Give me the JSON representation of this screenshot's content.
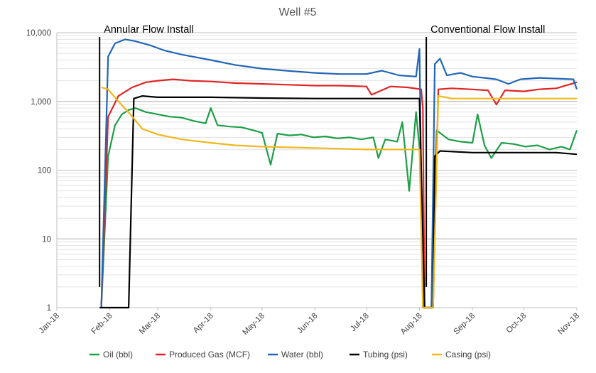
{
  "chart_data": {
    "type": "line",
    "title": "Well #5",
    "y_scale": "log",
    "ylim": [
      1,
      10000
    ],
    "y_ticks": [
      {
        "value": 10000,
        "label": "10,000"
      },
      {
        "value": 1000,
        "label": "1,000"
      },
      {
        "value": 100,
        "label": "100"
      },
      {
        "value": 10,
        "label": "10"
      },
      {
        "value": 1,
        "label": "1"
      }
    ],
    "x_ticks": [
      {
        "date": "2018-01-01",
        "label": "Jan-18"
      },
      {
        "date": "2018-02-01",
        "label": "Feb-18"
      },
      {
        "date": "2018-03-01",
        "label": "Mar-18"
      },
      {
        "date": "2018-04-01",
        "label": "Apr-18"
      },
      {
        "date": "2018-05-01",
        "label": "May-18"
      },
      {
        "date": "2018-06-01",
        "label": "Jun-18"
      },
      {
        "date": "2018-07-01",
        "label": "Jul-18"
      },
      {
        "date": "2018-08-01",
        "label": "Aug-18"
      },
      {
        "date": "2018-09-01",
        "label": "Sep-18"
      },
      {
        "date": "2018-10-01",
        "label": "Oct-18"
      },
      {
        "date": "2018-11-01",
        "label": "Nov-18"
      }
    ],
    "grid": true,
    "legend_position": "bottom",
    "annotations": [
      {
        "text": "Annular Flow Install",
        "date": "2018-01-26"
      },
      {
        "text": "Conventional Flow Install",
        "date": "2018-08-05"
      }
    ],
    "series": [
      {
        "name": "Oil (bbl)",
        "color": "#1e9e47",
        "points": [
          [
            "2018-01-27",
            1
          ],
          [
            "2018-01-31",
            160
          ],
          [
            "2018-02-04",
            450
          ],
          [
            "2018-02-08",
            650
          ],
          [
            "2018-02-12",
            750
          ],
          [
            "2018-02-16",
            800
          ],
          [
            "2018-02-22",
            700
          ],
          [
            "2018-03-01",
            650
          ],
          [
            "2018-03-08",
            600
          ],
          [
            "2018-03-15",
            580
          ],
          [
            "2018-03-22",
            520
          ],
          [
            "2018-03-29",
            480
          ],
          [
            "2018-04-01",
            800
          ],
          [
            "2018-04-05",
            450
          ],
          [
            "2018-04-12",
            430
          ],
          [
            "2018-04-19",
            420
          ],
          [
            "2018-04-26",
            380
          ],
          [
            "2018-05-01",
            350
          ],
          [
            "2018-05-06",
            120
          ],
          [
            "2018-05-10",
            340
          ],
          [
            "2018-05-17",
            320
          ],
          [
            "2018-05-24",
            330
          ],
          [
            "2018-05-31",
            300
          ],
          [
            "2018-06-07",
            310
          ],
          [
            "2018-06-14",
            290
          ],
          [
            "2018-06-21",
            300
          ],
          [
            "2018-06-28",
            280
          ],
          [
            "2018-07-05",
            300
          ],
          [
            "2018-07-08",
            150
          ],
          [
            "2018-07-12",
            280
          ],
          [
            "2018-07-19",
            260
          ],
          [
            "2018-07-22",
            500
          ],
          [
            "2018-07-26",
            50
          ],
          [
            "2018-07-30",
            700
          ],
          [
            "2018-08-02",
            120
          ],
          [
            "2018-08-03",
            1
          ],
          [
            "2018-08-08",
            1
          ],
          [
            "2018-08-11",
            380
          ],
          [
            "2018-08-18",
            280
          ],
          [
            "2018-08-25",
            260
          ],
          [
            "2018-09-01",
            250
          ],
          [
            "2018-09-04",
            650
          ],
          [
            "2018-09-08",
            230
          ],
          [
            "2018-09-12",
            150
          ],
          [
            "2018-09-18",
            250
          ],
          [
            "2018-09-25",
            240
          ],
          [
            "2018-10-02",
            220
          ],
          [
            "2018-10-09",
            230
          ],
          [
            "2018-10-16",
            200
          ],
          [
            "2018-10-23",
            220
          ],
          [
            "2018-10-28",
            200
          ],
          [
            "2018-11-01",
            380
          ]
        ]
      },
      {
        "name": "Produced Gas (MCF)",
        "color": "#e02525",
        "points": [
          [
            "2018-01-27",
            1
          ],
          [
            "2018-01-31",
            600
          ],
          [
            "2018-02-06",
            1200
          ],
          [
            "2018-02-14",
            1600
          ],
          [
            "2018-02-22",
            1900
          ],
          [
            "2018-03-01",
            2000
          ],
          [
            "2018-03-10",
            2100
          ],
          [
            "2018-03-20",
            2000
          ],
          [
            "2018-04-01",
            1950
          ],
          [
            "2018-04-15",
            1850
          ],
          [
            "2018-05-01",
            1800
          ],
          [
            "2018-05-15",
            1750
          ],
          [
            "2018-06-01",
            1700
          ],
          [
            "2018-06-15",
            1700
          ],
          [
            "2018-07-01",
            1650
          ],
          [
            "2018-07-04",
            1250
          ],
          [
            "2018-07-15",
            1650
          ],
          [
            "2018-07-25",
            1600
          ],
          [
            "2018-08-02",
            1500
          ],
          [
            "2018-08-03",
            800
          ],
          [
            "2018-08-04",
            1
          ],
          [
            "2018-08-09",
            1
          ],
          [
            "2018-08-12",
            1500
          ],
          [
            "2018-08-20",
            1550
          ],
          [
            "2018-08-31",
            1500
          ],
          [
            "2018-09-10",
            1450
          ],
          [
            "2018-09-15",
            900
          ],
          [
            "2018-09-20",
            1450
          ],
          [
            "2018-10-01",
            1400
          ],
          [
            "2018-10-10",
            1500
          ],
          [
            "2018-10-20",
            1550
          ],
          [
            "2018-11-01",
            1900
          ]
        ]
      },
      {
        "name": "Water (bbl)",
        "color": "#2166b5",
        "points": [
          [
            "2018-01-27",
            1
          ],
          [
            "2018-01-31",
            4500
          ],
          [
            "2018-02-04",
            7000
          ],
          [
            "2018-02-10",
            8000
          ],
          [
            "2018-02-16",
            7500
          ],
          [
            "2018-02-25",
            6500
          ],
          [
            "2018-03-05",
            5500
          ],
          [
            "2018-03-15",
            4800
          ],
          [
            "2018-04-01",
            4000
          ],
          [
            "2018-04-15",
            3400
          ],
          [
            "2018-05-01",
            3000
          ],
          [
            "2018-05-15",
            2800
          ],
          [
            "2018-06-01",
            2600
          ],
          [
            "2018-06-15",
            2500
          ],
          [
            "2018-07-01",
            2500
          ],
          [
            "2018-07-10",
            2800
          ],
          [
            "2018-07-20",
            2400
          ],
          [
            "2018-07-30",
            2300
          ],
          [
            "2018-08-01",
            5800
          ],
          [
            "2018-08-03",
            1
          ],
          [
            "2018-08-08",
            1
          ],
          [
            "2018-08-10",
            3500
          ],
          [
            "2018-08-13",
            4200
          ],
          [
            "2018-08-17",
            2400
          ],
          [
            "2018-08-25",
            2600
          ],
          [
            "2018-09-01",
            2300
          ],
          [
            "2018-09-08",
            2200
          ],
          [
            "2018-09-15",
            2100
          ],
          [
            "2018-09-22",
            1800
          ],
          [
            "2018-09-29",
            2100
          ],
          [
            "2018-10-10",
            2200
          ],
          [
            "2018-10-20",
            2150
          ],
          [
            "2018-10-30",
            2100
          ],
          [
            "2018-11-01",
            1500
          ]
        ]
      },
      {
        "name": "Tubing (psi)",
        "color": "#000000",
        "points": [
          [
            "2018-01-26",
            1
          ],
          [
            "2018-02-12",
            1
          ],
          [
            "2018-02-15",
            1100
          ],
          [
            "2018-02-20",
            1200
          ],
          [
            "2018-03-01",
            1150
          ],
          [
            "2018-04-01",
            1150
          ],
          [
            "2018-05-01",
            1120
          ],
          [
            "2018-06-01",
            1100
          ],
          [
            "2018-07-01",
            1100
          ],
          [
            "2018-08-01",
            1100
          ],
          [
            "2018-08-04",
            1
          ],
          [
            "2018-08-09",
            1
          ],
          [
            "2018-08-10",
            160
          ],
          [
            "2018-08-13",
            190
          ],
          [
            "2018-09-01",
            180
          ],
          [
            "2018-10-01",
            180
          ],
          [
            "2018-10-20",
            180
          ],
          [
            "2018-11-01",
            170
          ]
        ]
      },
      {
        "name": "Casing (psi)",
        "color": "#f2b619",
        "points": [
          [
            "2018-01-27",
            1600
          ],
          [
            "2018-01-31",
            1500
          ],
          [
            "2018-02-06",
            1000
          ],
          [
            "2018-02-13",
            650
          ],
          [
            "2018-02-20",
            400
          ],
          [
            "2018-03-01",
            330
          ],
          [
            "2018-03-15",
            280
          ],
          [
            "2018-04-01",
            250
          ],
          [
            "2018-04-15",
            230
          ],
          [
            "2018-05-01",
            220
          ],
          [
            "2018-05-15",
            215
          ],
          [
            "2018-06-01",
            210
          ],
          [
            "2018-06-15",
            205
          ],
          [
            "2018-07-01",
            200
          ],
          [
            "2018-07-15",
            200
          ],
          [
            "2018-08-01",
            200
          ],
          [
            "2018-08-03",
            1
          ],
          [
            "2018-08-09",
            1
          ],
          [
            "2018-08-12",
            1200
          ],
          [
            "2018-08-20",
            1100
          ],
          [
            "2018-09-15",
            1100
          ],
          [
            "2018-10-15",
            1100
          ],
          [
            "2018-11-01",
            1100
          ]
        ]
      }
    ]
  }
}
